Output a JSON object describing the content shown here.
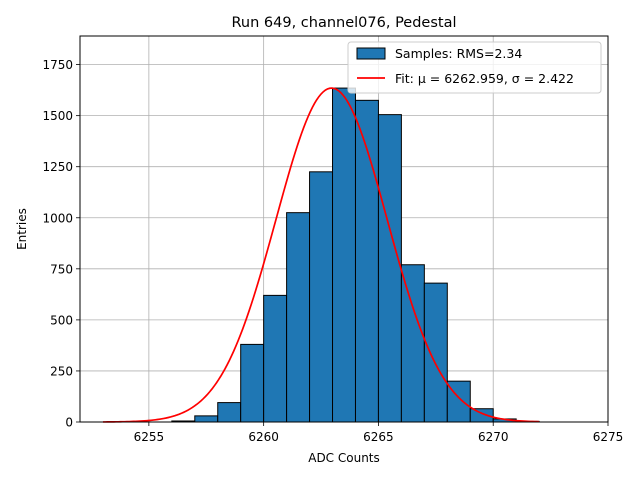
{
  "chart_data": {
    "type": "bar",
    "title": "Run 649, channel076, Pedestal",
    "xlabel": "ADC Counts",
    "ylabel": "Entries",
    "xlim": [
      6252.0,
      6275.0
    ],
    "ylim": [
      0,
      1890
    ],
    "xticks": [
      6255,
      6260,
      6265,
      6270,
      6275
    ],
    "yticks": [
      0,
      250,
      500,
      750,
      1000,
      1250,
      1500,
      1750
    ],
    "grid": true,
    "legend_position": "top-right",
    "bar_color": "#1f77b4",
    "fit_color": "#ff0000",
    "histogram": {
      "name": "Samples: RMS=2.34",
      "bin_width": 1,
      "bin_left_edges": [
        6256,
        6257,
        6258,
        6259,
        6260,
        6261,
        6262,
        6263,
        6264,
        6265,
        6266,
        6267,
        6268,
        6269,
        6270,
        6271
      ],
      "values": [
        5,
        30,
        95,
        380,
        620,
        1025,
        1225,
        1635,
        1575,
        1505,
        770,
        680,
        200,
        65,
        15,
        3
      ]
    },
    "fit": {
      "name": "Fit: μ = 6262.959, σ = 2.422",
      "mu": 6262.959,
      "sigma": 2.422,
      "amplitude": 1635,
      "x_range": [
        6253.0,
        6272.0
      ]
    }
  }
}
